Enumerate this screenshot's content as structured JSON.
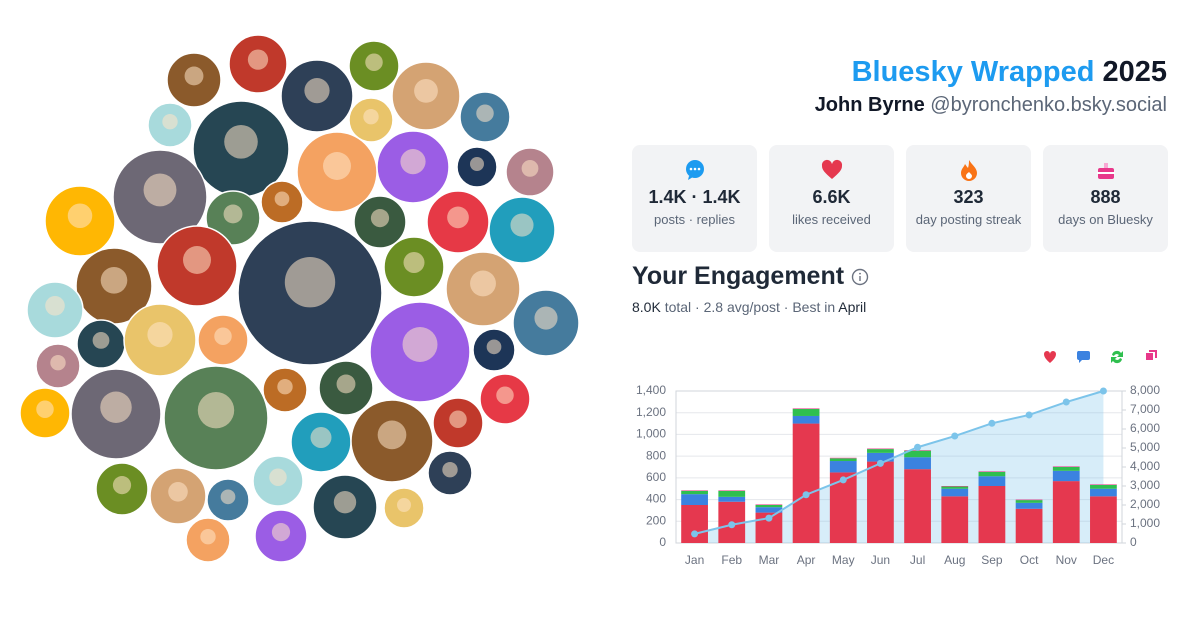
{
  "header": {
    "title": "Bluesky Wrapped",
    "year": "2025",
    "name": "John Byrne",
    "handle": "@byronchenko.bsky.social"
  },
  "stats": [
    {
      "value": "1.4K · 1.4K",
      "label": "posts · replies"
    },
    {
      "value": "6.6K",
      "label": "likes received"
    },
    {
      "value": "323",
      "label": "day posting streak"
    },
    {
      "value": "888",
      "label": "days on Bluesky"
    }
  ],
  "engagement": {
    "title": "Your Engagement",
    "total": "8.0K",
    "text1": "total · 2.8 avg/post · Best in",
    "best": "April"
  },
  "chart_data": {
    "type": "bar",
    "stacked": true,
    "grid": true,
    "categories": [
      "Jan",
      "Feb",
      "Mar",
      "Apr",
      "May",
      "Jun",
      "Jul",
      "Aug",
      "Sep",
      "Oct",
      "Nov",
      "Dec"
    ],
    "ylim": [
      0,
      1400
    ],
    "yticks": [
      0,
      200,
      400,
      600,
      800,
      {
        "value": 1000,
        "label": "1,000"
      },
      {
        "value": 1200,
        "label": "1,200"
      },
      {
        "value": 1400,
        "label": "1,400"
      }
    ],
    "y2lim": [
      0,
      8000
    ],
    "y2ticks": [
      0,
      {
        "value": 1000,
        "label": "1,000"
      },
      {
        "value": 2000,
        "label": "2,000"
      },
      {
        "value": 3000,
        "label": "3,000"
      },
      {
        "value": 4000,
        "label": "4,000"
      },
      {
        "value": 5000,
        "label": "5,000"
      },
      {
        "value": 6000,
        "label": "6,000"
      },
      {
        "value": 7000,
        "label": "7,000"
      },
      {
        "value": 8000,
        "label": "8,000"
      }
    ],
    "series": [
      {
        "color": "#e5384f",
        "values": [
          350,
          380,
          280,
          1100,
          650,
          750,
          680,
          430,
          525,
          315,
          570,
          430
        ]
      },
      {
        "color": "#3b82e0",
        "values": [
          100,
          45,
          50,
          70,
          105,
          80,
          110,
          70,
          90,
          55,
          95,
          70
        ]
      },
      {
        "color": "#2fbf4f",
        "values": [
          30,
          55,
          20,
          65,
          25,
          35,
          60,
          20,
          40,
          25,
          35,
          35
        ]
      },
      {
        "color": "#e8388a",
        "values": [
          5,
          5,
          5,
          5,
          5,
          5,
          5,
          5,
          5,
          5,
          5,
          5
        ]
      },
      {
        "type": "line",
        "axis": "y2",
        "color": "#7cc4ea",
        "values": [
          480,
          960,
          1310,
          2540,
          3320,
          4190,
          5040,
          5630,
          6300,
          6740,
          7420,
          8000
        ]
      }
    ]
  }
}
